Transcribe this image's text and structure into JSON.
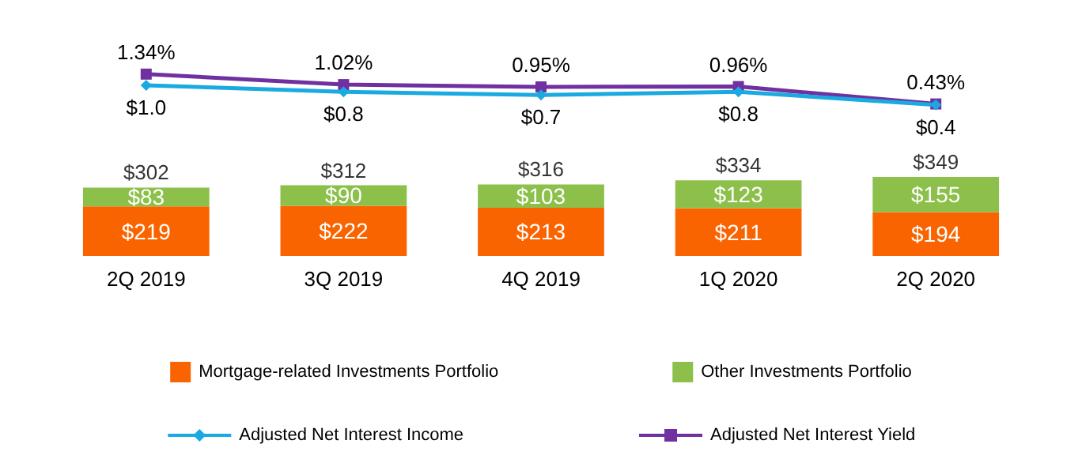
{
  "chart_data": [
    {
      "type": "line",
      "data_labels": true,
      "legend": "bottom",
      "categories": [
        null,
        null,
        null,
        null,
        null
      ],
      "series": [
        {
          "name": "Adjusted Net Interest Income",
          "marker": "diamond",
          "color": "#1ba9e1",
          "values": [
            1.0,
            0.8,
            0.7,
            0.8,
            0.4
          ],
          "value_labels": [
            "$1.0",
            "$0.8",
            "$0.7",
            "$0.8",
            "$0.4"
          ]
        },
        {
          "name": "Adjusted Net Interest Yield",
          "marker": "square",
          "color": "#7030a0",
          "values": [
            1.34,
            1.02,
            0.95,
            0.96,
            0.43
          ],
          "value_labels": [
            "1.34%",
            "1.02%",
            "0.95%",
            "0.96%",
            "0.43%"
          ]
        }
      ]
    },
    {
      "type": "bar",
      "stacked": true,
      "legend": "bottom",
      "grid": false,
      "data_labels": true,
      "categories": [
        "2Q 2019",
        "3Q 2019",
        "4Q 2019",
        "1Q 2020",
        "2Q 2020"
      ],
      "totals": [
        "$302",
        "$312",
        "$316",
        "$334",
        "$349"
      ],
      "series": [
        {
          "name": "Mortgage-related Investments Portfolio",
          "color": "#fa6400",
          "values": [
            219,
            222,
            213,
            211,
            194
          ],
          "value_labels": [
            "$219",
            "$222",
            "$213",
            "$211",
            "$194"
          ]
        },
        {
          "name": "Other Investments Portfolio",
          "color": "#8cc04a",
          "values": [
            83,
            90,
            103,
            123,
            155
          ],
          "value_labels": [
            "$83",
            "$90",
            "$103",
            "$123",
            "$155"
          ]
        }
      ]
    }
  ]
}
